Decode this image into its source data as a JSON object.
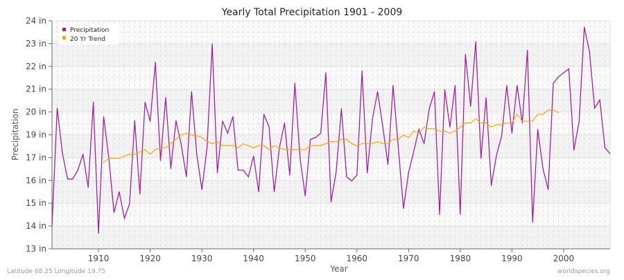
{
  "chart_data": {
    "type": "line",
    "title": "Yearly Total Precipitation 1901 - 2009",
    "xlabel": "Year",
    "ylabel": "Precipitation",
    "y_tick_labels": [
      "24 in",
      "23 in",
      "22 in",
      "21 in",
      "20 in",
      "19 in",
      "17 in",
      "16 in",
      "15 in",
      "14 in",
      "13 in"
    ],
    "y_tick_values": [
      24,
      23,
      22,
      21,
      20,
      19,
      17,
      16,
      15,
      14,
      13
    ],
    "x_ticks": [
      1910,
      1920,
      1930,
      1940,
      1950,
      1960,
      1970,
      1980,
      1990,
      2000
    ],
    "xlim": [
      1901,
      2009
    ],
    "grid": true,
    "legend_position": "top-left",
    "series": [
      {
        "name": "Precipitation",
        "color": "#a020a0",
        "start_year": 1901,
        "values": [
          14.0,
          20.17,
          17.44,
          16.06,
          16.06,
          16.45,
          17.3,
          15.69,
          20.43,
          13.68,
          19.8,
          16.97,
          14.59,
          15.5,
          14.34,
          14.97,
          19.62,
          15.4,
          20.43,
          19.59,
          22.18,
          16.87,
          20.63,
          16.52,
          19.62,
          18.16,
          16.16,
          20.89,
          17.34,
          15.6,
          17.86,
          22.99,
          16.33,
          19.6,
          19.07,
          19.8,
          16.45,
          16.45,
          16.16,
          17.14,
          15.5,
          19.9,
          19.34,
          15.5,
          17.86,
          19.52,
          16.23,
          21.26,
          16.97,
          15.32,
          18.6,
          18.76,
          19.07,
          21.72,
          15.05,
          16.41,
          20.15,
          16.16,
          15.98,
          16.23,
          21.8,
          16.33,
          19.69,
          20.89,
          19.39,
          16.7,
          21.16,
          17.96,
          14.77,
          16.34,
          17.56,
          19.24,
          18.22,
          20.15,
          20.89,
          14.51,
          20.98,
          19.34,
          21.16,
          14.51,
          22.53,
          20.25,
          23.09,
          16.97,
          20.63,
          15.78,
          17.18,
          18.9,
          21.16,
          19.07,
          21.16,
          19.52,
          22.71,
          14.16,
          19.24,
          16.52,
          15.6,
          21.26,
          21.54,
          21.72,
          21.89,
          17.66,
          19.6,
          23.72,
          22.65,
          20.17,
          20.53,
          17.86,
          17.34
        ]
      },
      {
        "name": "20 Yr Trend",
        "color": "#ffa500",
        "start_year": 1911,
        "values": [
          16.79,
          16.97,
          16.97,
          16.97,
          17.14,
          17.3,
          17.3,
          17.5,
          17.7,
          17.3,
          17.7,
          17.86,
          17.86,
          18.22,
          18.62,
          18.98,
          19.07,
          18.98,
          18.93,
          18.76,
          18.4,
          18.22,
          18.4,
          18.06,
          18.06,
          18.06,
          17.86,
          18.22,
          18.04,
          17.86,
          18.06,
          18.06,
          17.7,
          18.04,
          17.86,
          17.7,
          17.7,
          17.7,
          17.7,
          17.7,
          18.06,
          18.06,
          18.06,
          18.22,
          18.4,
          18.4,
          18.6,
          18.6,
          18.22,
          18.06,
          18.22,
          18.22,
          18.22,
          18.4,
          18.22,
          18.22,
          18.6,
          18.6,
          18.97,
          18.76,
          19.16,
          19.07,
          19.34,
          19.26,
          19.26,
          19.16,
          19.16,
          19.07,
          19.16,
          19.34,
          19.52,
          19.52,
          19.71,
          19.52,
          19.52,
          19.34,
          19.44,
          19.44,
          19.52,
          19.52,
          19.9,
          19.6,
          19.6,
          19.6,
          19.9,
          19.9,
          20.08,
          20.08,
          19.98
        ]
      }
    ]
  },
  "footer": {
    "location": "Latitude 68.25 Longitude 19.75",
    "source": "worldspecies.org"
  }
}
